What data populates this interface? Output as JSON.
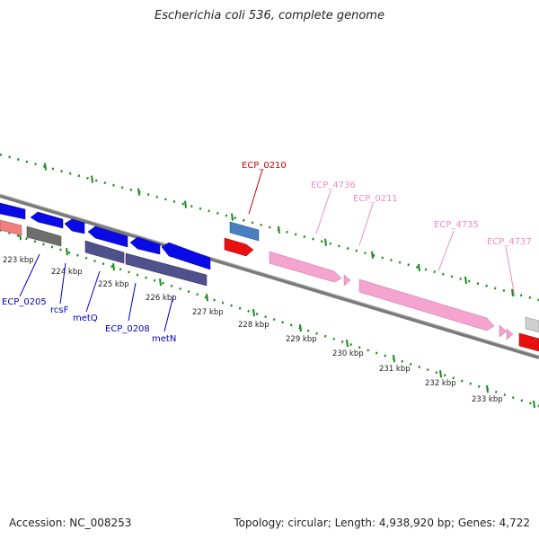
{
  "title": "Escherichia coli 536, complete genome",
  "footer": {
    "accession": "Accession: NC_008253",
    "stats": "Topology: circular; Length: 4,938,920 bp; Genes: 4,722"
  },
  "scale": {
    "ticks": [
      "223 kbp",
      "224 kbp",
      "225 kbp",
      "226 kbp",
      "227 kbp",
      "228 kbp",
      "229 kbp",
      "230 kbp",
      "231 kbp",
      "232 kbp",
      "233 kbp"
    ]
  },
  "genes": [
    {
      "label": "ECP_0205",
      "color": "#0000cc",
      "strand": "minus"
    },
    {
      "label": "rcsF",
      "color": "#0000cc",
      "strand": "minus"
    },
    {
      "label": "metQ",
      "color": "#0000cc",
      "strand": "minus"
    },
    {
      "label": "ECP_0208",
      "color": "#0000cc",
      "strand": "minus"
    },
    {
      "label": "metN",
      "color": "#0000cc",
      "strand": "minus"
    },
    {
      "label": "ECP_0210",
      "color": "#cc0000",
      "strand": "plus"
    },
    {
      "label": "ECP_4736",
      "color": "#f08cbe",
      "strand": "plus"
    },
    {
      "label": "ECP_0211",
      "color": "#f08cbe",
      "strand": "plus"
    },
    {
      "label": "ECP_4735",
      "color": "#f08cbe",
      "strand": "plus"
    },
    {
      "label": "ECP_4737",
      "color": "#f08cbe",
      "strand": "plus"
    }
  ]
}
